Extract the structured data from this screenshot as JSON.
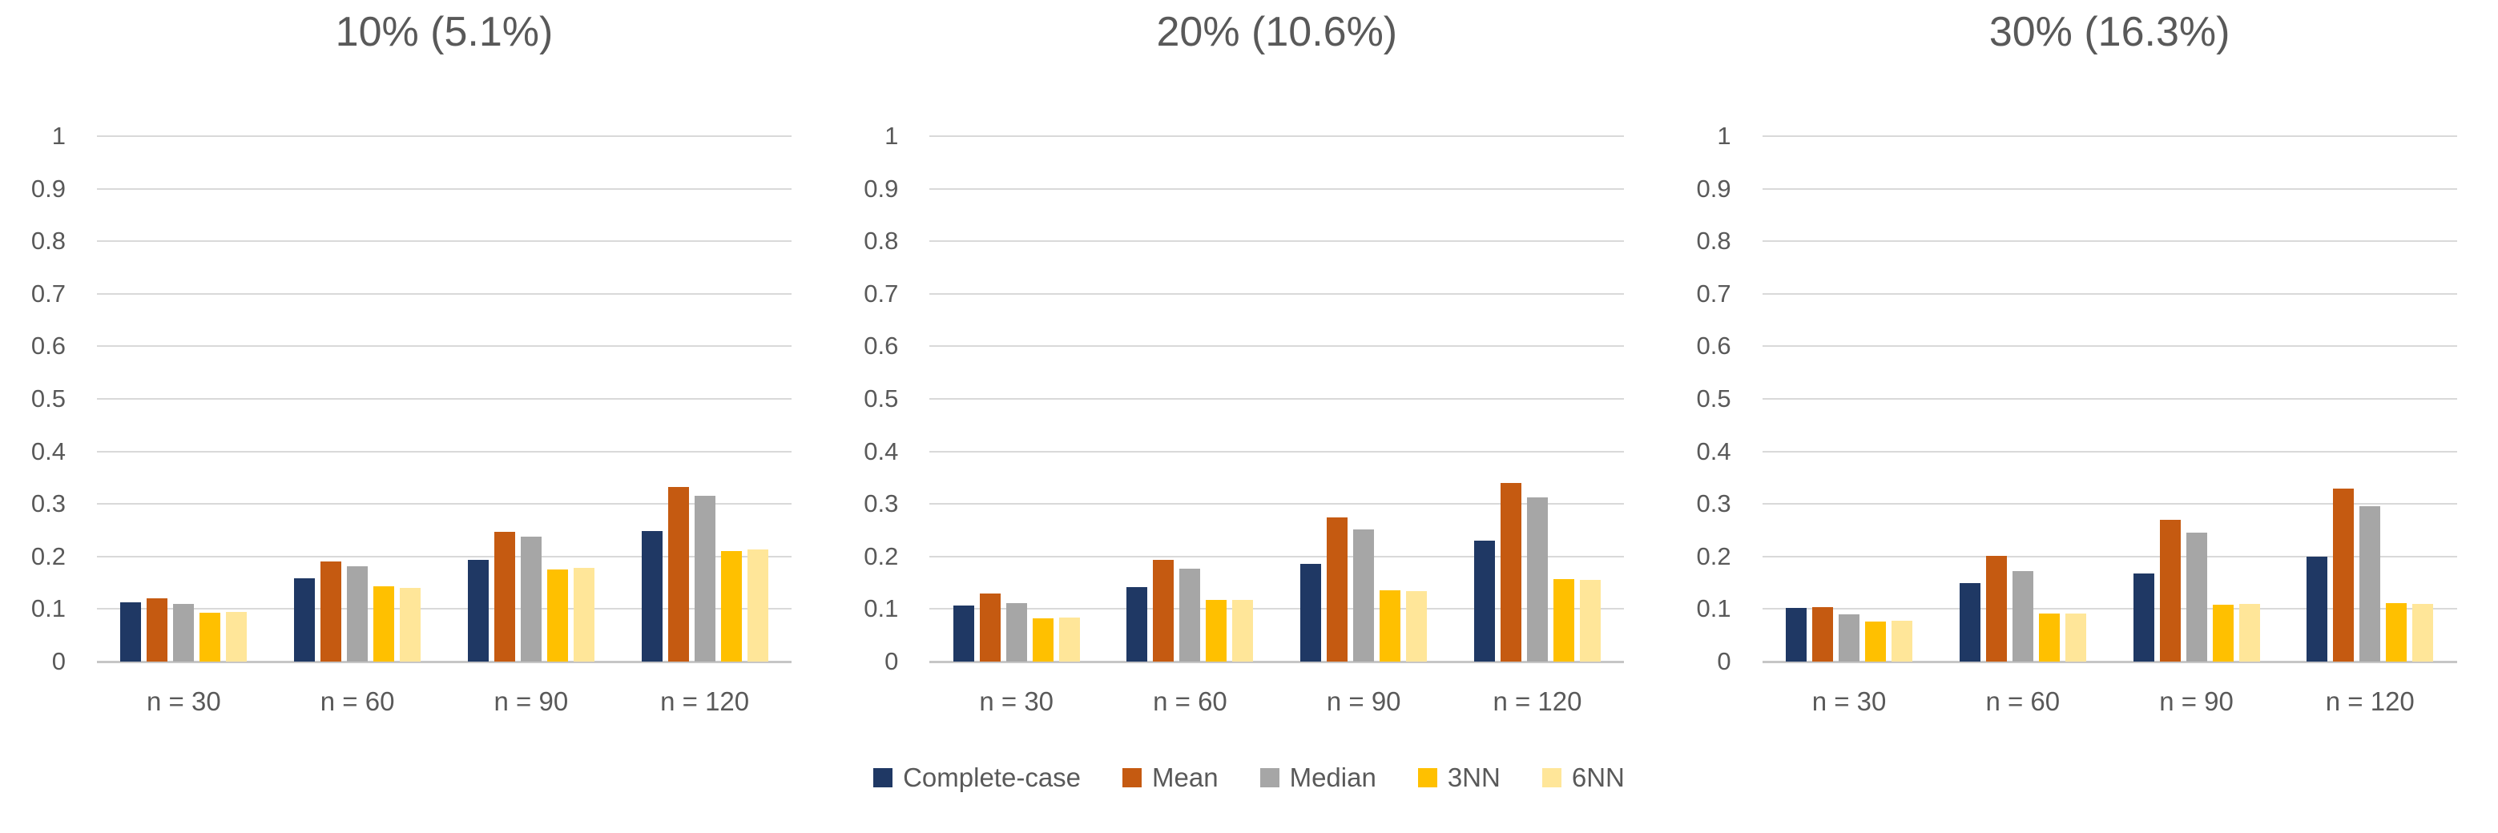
{
  "colors": {
    "background": "#FFFFFF",
    "text": "#595959",
    "gridline": "#D9D9D9",
    "axis_line": "#C6C6C6",
    "complete_case": "#1F3864",
    "mean": "#C55A11",
    "median": "#A6A6A6",
    "nn3": "#FFC000",
    "nn6": "#FFE699"
  },
  "legend": {
    "position": "bottom-center",
    "items": [
      {
        "label": "Complete-case",
        "color": "#1F3864"
      },
      {
        "label": "Mean",
        "color": "#C55A11"
      },
      {
        "label": "Median",
        "color": "#A6A6A6"
      },
      {
        "label": "3NN",
        "color": "#FFC000"
      },
      {
        "label": "6NN",
        "color": "#FFE699"
      }
    ]
  },
  "chart_data": [
    {
      "type": "bar",
      "title": "10% (5.1%)",
      "categories": [
        "n = 30",
        "n = 60",
        "n = 90",
        "n = 120"
      ],
      "series": [
        {
          "name": "Complete-case",
          "color": "#1F3864",
          "values": [
            0.113,
            0.158,
            0.194,
            0.249
          ]
        },
        {
          "name": "Mean",
          "color": "#C55A11",
          "values": [
            0.12,
            0.19,
            0.247,
            0.333
          ]
        },
        {
          "name": "Median",
          "color": "#A6A6A6",
          "values": [
            0.11,
            0.181,
            0.238,
            0.315
          ]
        },
        {
          "name": "3NN",
          "color": "#FFC000",
          "values": [
            0.093,
            0.143,
            0.176,
            0.21
          ]
        },
        {
          "name": "6NN",
          "color": "#FFE699",
          "values": [
            0.095,
            0.14,
            0.178,
            0.213
          ]
        }
      ],
      "xlabel": "",
      "ylabel": "",
      "ylim": [
        0,
        1
      ],
      "ytick_labels": [
        "0",
        "0.1",
        "0.2",
        "0.3",
        "0.4",
        "0.5",
        "0.6",
        "0.7",
        "0.8",
        "0.9",
        "1"
      ],
      "grid": true,
      "legend_position": "bottom"
    },
    {
      "type": "bar",
      "title": "20% (10.6%)",
      "categories": [
        "n = 30",
        "n = 60",
        "n = 90",
        "n = 120"
      ],
      "series": [
        {
          "name": "Complete-case",
          "color": "#1F3864",
          "values": [
            0.107,
            0.142,
            0.186,
            0.23
          ]
        },
        {
          "name": "Mean",
          "color": "#C55A11",
          "values": [
            0.129,
            0.193,
            0.274,
            0.34
          ]
        },
        {
          "name": "Median",
          "color": "#A6A6A6",
          "values": [
            0.111,
            0.177,
            0.251,
            0.313
          ]
        },
        {
          "name": "3NN",
          "color": "#FFC000",
          "values": [
            0.083,
            0.117,
            0.136,
            0.157
          ]
        },
        {
          "name": "6NN",
          "color": "#FFE699",
          "values": [
            0.084,
            0.117,
            0.134,
            0.156
          ]
        }
      ],
      "xlabel": "",
      "ylabel": "",
      "ylim": [
        0,
        1
      ],
      "ytick_labels": [
        "0",
        "0.1",
        "0.2",
        "0.3",
        "0.4",
        "0.5",
        "0.6",
        "0.7",
        "0.8",
        "0.9",
        "1"
      ],
      "grid": true,
      "legend_position": "bottom"
    },
    {
      "type": "bar",
      "title": "30% (16.3%)",
      "categories": [
        "n = 30",
        "n = 60",
        "n = 90",
        "n = 120"
      ],
      "series": [
        {
          "name": "Complete-case",
          "color": "#1F3864",
          "values": [
            0.102,
            0.15,
            0.167,
            0.2
          ]
        },
        {
          "name": "Mean",
          "color": "#C55A11",
          "values": [
            0.104,
            0.201,
            0.27,
            0.33
          ]
        },
        {
          "name": "Median",
          "color": "#A6A6A6",
          "values": [
            0.09,
            0.173,
            0.245,
            0.295
          ]
        },
        {
          "name": "3NN",
          "color": "#FFC000",
          "values": [
            0.076,
            0.092,
            0.108,
            0.111
          ]
        },
        {
          "name": "6NN",
          "color": "#FFE699",
          "values": [
            0.078,
            0.092,
            0.109,
            0.11
          ]
        }
      ],
      "xlabel": "",
      "ylabel": "",
      "ylim": [
        0,
        1
      ],
      "ytick_labels": [
        "0",
        "0.1",
        "0.2",
        "0.3",
        "0.4",
        "0.5",
        "0.6",
        "0.7",
        "0.8",
        "0.9",
        "1"
      ],
      "grid": true,
      "legend_position": "bottom"
    }
  ]
}
